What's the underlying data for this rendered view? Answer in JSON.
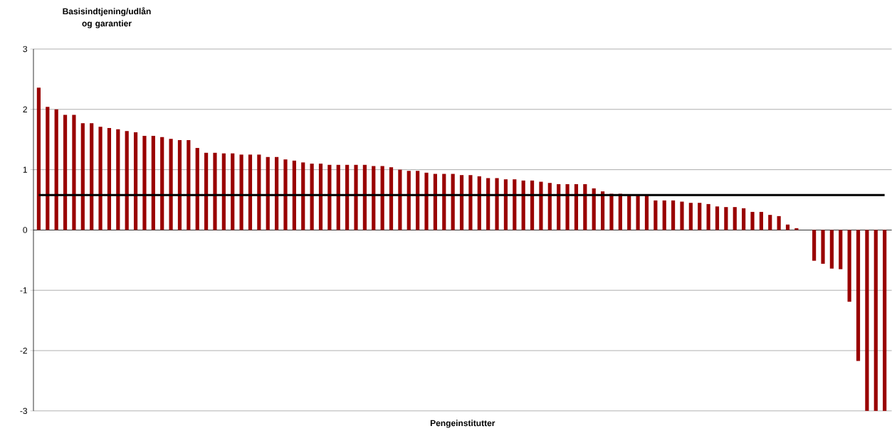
{
  "chart_data": {
    "type": "bar",
    "ylabel": "Basisindtjening/udlån  og garantier",
    "xlabel": "Pengeinstitutter",
    "categories": [
      null,
      null,
      null,
      null,
      null,
      null,
      null,
      null,
      null,
      null,
      null,
      null,
      null,
      null,
      null,
      null,
      null,
      null,
      null,
      null,
      null,
      null,
      null,
      null,
      null,
      null,
      null,
      null,
      null,
      null,
      null,
      null,
      null,
      null,
      null,
      null,
      null,
      null,
      null,
      null,
      null,
      null,
      null,
      null,
      null,
      null,
      null,
      null,
      null,
      null,
      null,
      null,
      null,
      null,
      null,
      null,
      null,
      null,
      null,
      null,
      null,
      null,
      null,
      null,
      null,
      null,
      null,
      null,
      null,
      null,
      null,
      null,
      null,
      null,
      null,
      null,
      null,
      null,
      null,
      null,
      null,
      null,
      null,
      null,
      null,
      null,
      null,
      null,
      null,
      null,
      null,
      null,
      null,
      null,
      null,
      null,
      null
    ],
    "values": [
      2.36,
      2.04,
      2.0,
      1.91,
      1.91,
      1.77,
      1.77,
      1.71,
      1.69,
      1.67,
      1.64,
      1.62,
      1.56,
      1.56,
      1.54,
      1.51,
      1.49,
      1.49,
      1.36,
      1.28,
      1.28,
      1.27,
      1.27,
      1.25,
      1.25,
      1.25,
      1.21,
      1.21,
      1.17,
      1.15,
      1.12,
      1.1,
      1.1,
      1.08,
      1.08,
      1.08,
      1.08,
      1.08,
      1.06,
      1.06,
      1.04,
      1.0,
      0.98,
      0.98,
      0.95,
      0.93,
      0.93,
      0.93,
      0.91,
      0.91,
      0.89,
      0.86,
      0.86,
      0.84,
      0.84,
      0.82,
      0.82,
      0.8,
      0.78,
      0.76,
      0.76,
      0.76,
      0.76,
      0.69,
      0.64,
      0.6,
      0.6,
      0.57,
      0.57,
      0.57,
      0.49,
      0.49,
      0.49,
      0.47,
      0.45,
      0.45,
      0.43,
      0.39,
      0.38,
      0.38,
      0.36,
      0.3,
      0.3,
      0.25,
      0.23,
      0.09,
      0.03,
      0.0,
      -0.51,
      -0.56,
      -0.64,
      -0.65,
      -1.19,
      -2.17,
      -3,
      -3,
      -3
    ],
    "color": "#990000",
    "ylim": [
      -3,
      3
    ],
    "yticks": [
      -3,
      -2,
      -1,
      0,
      1,
      2,
      3
    ],
    "grid": "y",
    "ref_lines": [
      {
        "axis": "y",
        "value": 0.58,
        "color": "#000000"
      }
    ]
  }
}
